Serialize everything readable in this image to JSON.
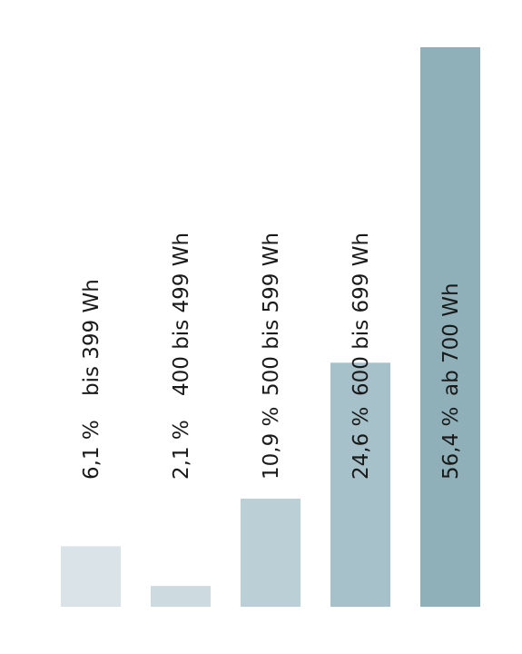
{
  "chart_data": {
    "type": "bar",
    "title": "",
    "xlabel": "",
    "ylabel": "",
    "ylim": [
      0,
      56.4
    ],
    "categories": [
      "bis 399 Wh",
      "400 bis 499 Wh",
      "500 bis 599 Wh",
      "600 bis 699 Wh",
      "ab 700 Wh"
    ],
    "values": [
      6.1,
      2.1,
      10.9,
      24.6,
      56.4
    ],
    "value_labels": [
      "6,1 %",
      "2,1 %",
      "10,9 %",
      "24,6 %",
      "56,4 %"
    ],
    "colors": [
      "#dae4e8",
      "#cddbe0",
      "#bacfd6",
      "#a6c1c9",
      "#8fb0b9"
    ],
    "grid": false,
    "legend": "none"
  }
}
